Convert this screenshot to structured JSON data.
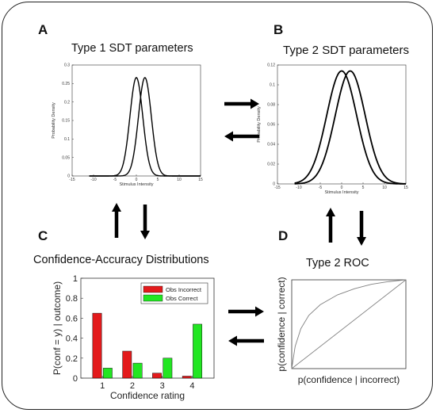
{
  "panels": {
    "A": {
      "letter": "A",
      "title": "Type 1 SDT parameters"
    },
    "B": {
      "letter": "B",
      "title": "Type 2 SDT parameters"
    },
    "C": {
      "letter": "C",
      "title": "Confidence-Accuracy Distributions"
    },
    "D": {
      "letter": "D",
      "title": "Type 2 ROC"
    }
  },
  "colors": {
    "incorrect": "#e31a1c",
    "correct": "#22e622",
    "curve": "#000000",
    "roc": "#808080"
  },
  "chart_data": [
    {
      "id": "type1",
      "type": "line",
      "xlabel": "Stimulus Intensity",
      "ylabel": "Probability Density",
      "xlim": [
        -15,
        15
      ],
      "ylim": [
        0,
        0.3
      ],
      "xticks": [
        "-15",
        "-10",
        "-5",
        "0",
        "5",
        "10",
        "15"
      ],
      "yticks": [
        "0",
        "0.05",
        "0.1",
        "0.15",
        "0.2",
        "0.25",
        "0.3"
      ],
      "series": [
        {
          "mean": 0,
          "sd": 1.5
        },
        {
          "mean": 2,
          "sd": 1.5
        }
      ]
    },
    {
      "id": "type2",
      "type": "line",
      "xlabel": "Stimulus Intensity",
      "ylabel": "Probability Density",
      "xlim": [
        -15,
        15
      ],
      "ylim": [
        0,
        0.12
      ],
      "xticks": [
        "-15",
        "-10",
        "-5",
        "0",
        "5",
        "10",
        "15"
      ],
      "yticks": [
        "0",
        "0.02",
        "0.04",
        "0.06",
        "0.08",
        "0.1",
        "0.12"
      ],
      "series": [
        {
          "mean": 0,
          "sd": 3.5
        },
        {
          "mean": 2,
          "sd": 3.5
        }
      ]
    },
    {
      "id": "conf_acc",
      "type": "bar",
      "xlabel": "Confidence rating",
      "ylabel": "P(conf = y) | outcome)",
      "categories": [
        "1",
        "2",
        "3",
        "4"
      ],
      "ylim": [
        0,
        1
      ],
      "yticks": [
        "0",
        "0.2",
        "0.4",
        "0.6",
        "0.8",
        "1"
      ],
      "legend": "top-right",
      "series": [
        {
          "name": "Obs Incorrect",
          "values": [
            0.65,
            0.27,
            0.05,
            0.02
          ]
        },
        {
          "name": "Obs Correct",
          "values": [
            0.1,
            0.15,
            0.2,
            0.54
          ]
        }
      ]
    },
    {
      "id": "roc",
      "type": "line",
      "xlabel": "p(confidence | incorrect)",
      "ylabel": "p(confidence | correct)",
      "xlim": [
        0,
        1
      ],
      "ylim": [
        0,
        1
      ],
      "curve_x": [
        0,
        0.03,
        0.08,
        0.15,
        0.25,
        0.4,
        0.55,
        0.7,
        0.85,
        1
      ],
      "curve_y": [
        0,
        0.25,
        0.45,
        0.6,
        0.72,
        0.83,
        0.9,
        0.95,
        0.98,
        1
      ]
    }
  ]
}
